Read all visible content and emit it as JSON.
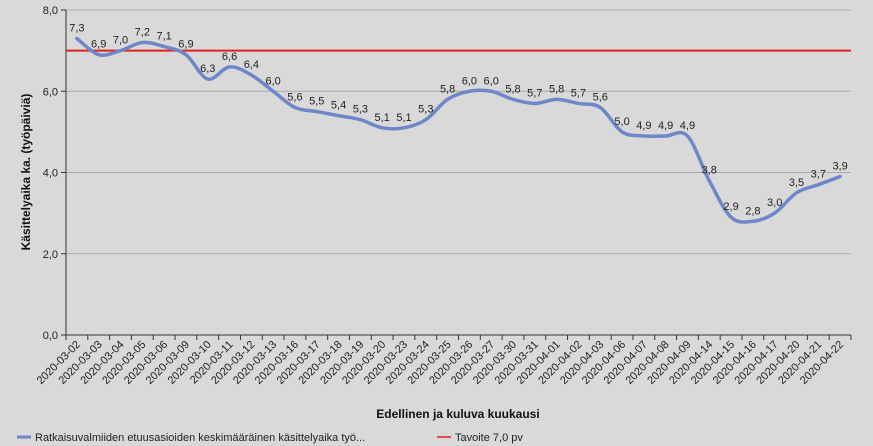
{
  "chart_data": {
    "type": "line",
    "title": "",
    "xlabel": "Edellinen ja kuluva kuukausi",
    "ylabel": "Käsittelyaika ka. (työpäiviä)",
    "ylim": [
      0,
      8
    ],
    "yticks": [
      "0,0",
      "2,0",
      "4,0",
      "6,0",
      "8,0"
    ],
    "ytick_values": [
      0,
      2,
      4,
      6,
      8
    ],
    "grid": true,
    "legend_position": "bottom",
    "categories": [
      "2020-03-02",
      "2020-03-03",
      "2020-03-04",
      "2020-03-05",
      "2020-03-06",
      "2020-03-09",
      "2020-03-10",
      "2020-03-11",
      "2020-03-12",
      "2020-03-13",
      "2020-03-16",
      "2020-03-17",
      "2020-03-18",
      "2020-03-19",
      "2020-03-20",
      "2020-03-23",
      "2020-03-24",
      "2020-03-25",
      "2020-03-26",
      "2020-03-27",
      "2020-03-30",
      "2020-03-31",
      "2020-04-01",
      "2020-04-02",
      "2020-04-03",
      "2020-04-06",
      "2020-04-07",
      "2020-04-08",
      "2020-04-09",
      "2020-04-14",
      "2020-04-15",
      "2020-04-16",
      "2020-04-17",
      "2020-04-20",
      "2020-04-21",
      "2020-04-22"
    ],
    "series": [
      {
        "name": "Ratkaisuvalmiiden etuusasioiden keskimääräinen käsittelyaika työ...",
        "color": "#6f87c7",
        "values": [
          7.3,
          6.9,
          7.0,
          7.2,
          7.1,
          6.9,
          6.3,
          6.6,
          6.4,
          6.0,
          5.6,
          5.5,
          5.4,
          5.3,
          5.1,
          5.1,
          5.3,
          5.8,
          6.0,
          6.0,
          5.8,
          5.7,
          5.8,
          5.7,
          5.6,
          5.0,
          4.9,
          4.9,
          4.9,
          3.8,
          2.9,
          2.8,
          3.0,
          3.5,
          3.7,
          3.9
        ],
        "labels": [
          "7,3",
          "6,9",
          "7,0",
          "7,2",
          "7,1",
          "6,9",
          "6,3",
          "6,6",
          "6,4",
          "6,0",
          "5,6",
          "5,5",
          "5,4",
          "5,3",
          "5,1",
          "5,1",
          "5,3",
          "5,8",
          "6,0",
          "6,0",
          "5,8",
          "5,7",
          "5,8",
          "5,7",
          "5,6",
          "5,0",
          "4,9",
          "4,9",
          "4,9",
          "3,8",
          "2,9",
          "2,8",
          "3,0",
          "3,5",
          "3,7",
          "3,9"
        ]
      }
    ],
    "target": {
      "name": "Tavoite 7,0 pv",
      "value": 7.0,
      "color": "#e02020"
    }
  }
}
